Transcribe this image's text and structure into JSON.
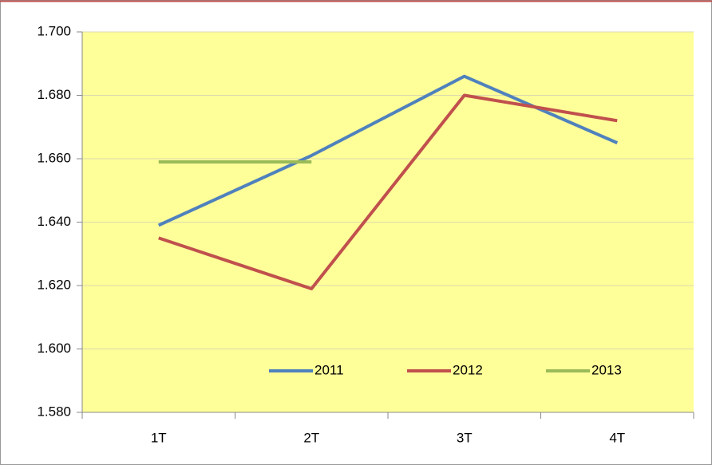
{
  "chart_data": {
    "type": "line",
    "categories": [
      "1T",
      "2T",
      "3T",
      "4T"
    ],
    "series": [
      {
        "name": "2011",
        "color": "#4f81bd",
        "values": [
          1639,
          1661,
          1686,
          1665
        ]
      },
      {
        "name": "2012",
        "color": "#c0504d",
        "values": [
          1635,
          1619,
          1680,
          1672
        ]
      },
      {
        "name": "2013",
        "color": "#9bbb59",
        "values": [
          1659,
          1659,
          null,
          null
        ]
      }
    ],
    "ylim": [
      1580,
      1700
    ],
    "yticks": [
      {
        "value": 1580,
        "label": "1.580"
      },
      {
        "value": 1600,
        "label": "1.600"
      },
      {
        "value": 1620,
        "label": "1.620"
      },
      {
        "value": 1640,
        "label": "1.640"
      },
      {
        "value": 1660,
        "label": "1.660"
      },
      {
        "value": 1680,
        "label": "1.680"
      },
      {
        "value": 1700,
        "label": "1.700"
      }
    ],
    "grid": true,
    "legend": "bottom",
    "plot_background": "#ffff99"
  }
}
